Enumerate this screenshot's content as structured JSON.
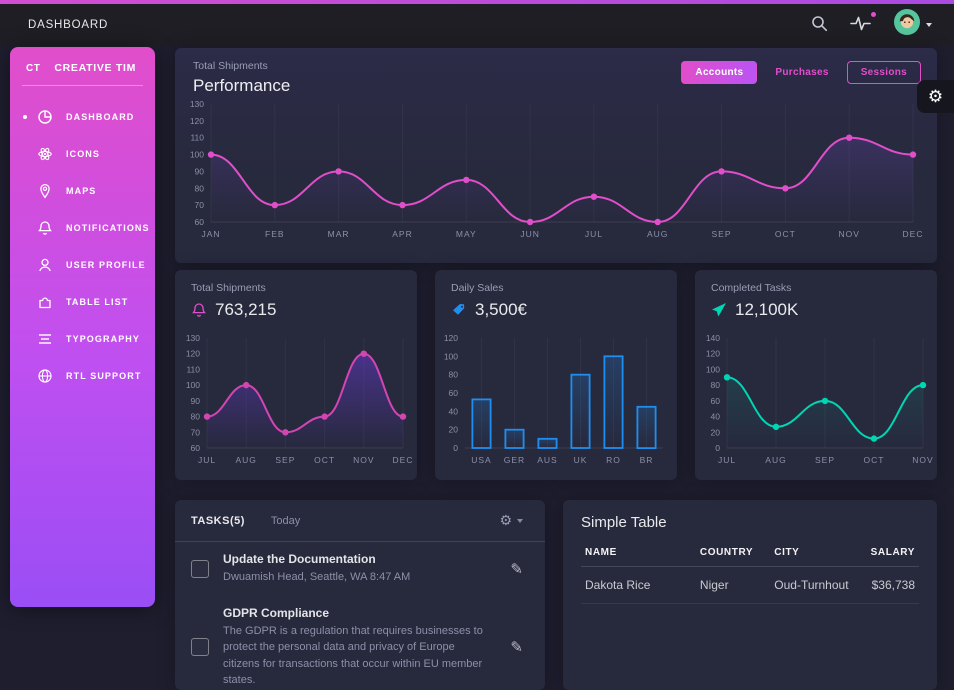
{
  "colors": {
    "primary": "#e14eca",
    "purple": "#ba54f5",
    "blue": "#1f8ef1",
    "teal": "#00d6b4",
    "card_bg": "#27293d",
    "body_bg": "#1e1e2f"
  },
  "topbar": {
    "title": "DASHBOARD",
    "icons": [
      "search-icon",
      "activity-icon",
      "avatar"
    ]
  },
  "sidebar": {
    "brand_short": "CT",
    "brand": "CREATIVE TIM",
    "items": [
      {
        "label": "DASHBOARD",
        "icon": "chart-pie-icon",
        "active": true
      },
      {
        "label": "ICONS",
        "icon": "atom-icon",
        "active": false
      },
      {
        "label": "MAPS",
        "icon": "pin-icon",
        "active": false
      },
      {
        "label": "NOTIFICATIONS",
        "icon": "bell-icon",
        "active": false
      },
      {
        "label": "USER PROFILE",
        "icon": "user-icon",
        "active": false
      },
      {
        "label": "TABLE LIST",
        "icon": "puzzle-icon",
        "active": false
      },
      {
        "label": "TYPOGRAPHY",
        "icon": "align-icon",
        "active": false
      },
      {
        "label": "RTL SUPPORT",
        "icon": "globe-icon",
        "active": false
      }
    ]
  },
  "performance": {
    "subtitle": "Total Shipments",
    "title": "Performance",
    "buttons": [
      {
        "label": "Accounts",
        "variant": "filled",
        "active": true
      },
      {
        "label": "Purchases",
        "variant": "text",
        "active": false
      },
      {
        "label": "Sessions",
        "variant": "outline",
        "active": false
      }
    ]
  },
  "stats": [
    {
      "label": "Total Shipments",
      "value": "763,215",
      "icon": "bell-icon",
      "color": "#e14eca"
    },
    {
      "label": "Daily Sales",
      "value": "3,500€",
      "icon": "tag-icon",
      "color": "#1f8ef1"
    },
    {
      "label": "Completed Tasks",
      "value": "12,100K",
      "icon": "send-icon",
      "color": "#00d6b4"
    }
  ],
  "chart_data": [
    {
      "name": "performance",
      "type": "line",
      "title": "Performance",
      "subtitle": "Total Shipments",
      "categories": [
        "JAN",
        "FEB",
        "MAR",
        "APR",
        "MAY",
        "JUN",
        "JUL",
        "AUG",
        "SEP",
        "OCT",
        "NOV",
        "DEC"
      ],
      "values": [
        100,
        70,
        90,
        70,
        85,
        60,
        75,
        60,
        90,
        80,
        110,
        100
      ],
      "ylim": [
        60,
        130
      ],
      "yticks": [
        130,
        120,
        110,
        100,
        90,
        80,
        70,
        60
      ],
      "line_color": "#e14eca",
      "fill_color": "#8250dd",
      "fill_opacity": 0.2,
      "grid": "faint-vertical",
      "legend": false
    },
    {
      "name": "total-shipments",
      "type": "line",
      "title": "Total Shipments",
      "categories": [
        "JUL",
        "AUG",
        "SEP",
        "OCT",
        "NOV",
        "DEC"
      ],
      "values": [
        80,
        100,
        70,
        80,
        120,
        80
      ],
      "ylim": [
        60,
        130
      ],
      "yticks": [
        130,
        120,
        110,
        100,
        90,
        80,
        70,
        60
      ],
      "line_color": "#d346b1",
      "fill_color": "#6a3bd8",
      "fill_opacity": 0.5,
      "grid": "faint-vertical",
      "legend": false
    },
    {
      "name": "daily-sales",
      "type": "bar",
      "title": "Daily Sales",
      "categories": [
        "USA",
        "GER",
        "AUS",
        "UK",
        "RO",
        "BR"
      ],
      "values": [
        53,
        20,
        10,
        80,
        100,
        45
      ],
      "ylim": [
        0,
        120
      ],
      "yticks": [
        120,
        100,
        80,
        60,
        40,
        20,
        0
      ],
      "line_color": "#1f8ef1",
      "fill_color": "#1f8ef1",
      "fill_opacity": 0.22,
      "grid": "faint-vertical",
      "legend": false
    },
    {
      "name": "completed-tasks",
      "type": "line",
      "title": "Completed Tasks",
      "categories": [
        "JUL",
        "AUG",
        "SEP",
        "OCT",
        "NOV"
      ],
      "values": [
        90,
        27,
        60,
        12,
        80
      ],
      "ylim": [
        0,
        140
      ],
      "yticks": [
        140,
        120,
        100,
        80,
        60,
        40,
        20,
        0
      ],
      "line_color": "#00d6b4",
      "fill_color": "#00d6b4",
      "fill_opacity": 0.12,
      "grid": "faint-vertical",
      "legend": false
    }
  ],
  "tasks": {
    "title": "TASKS(5)",
    "filter": "Today",
    "items": [
      {
        "title": "Update the Documentation",
        "meta": "Dwuamish Head, Seattle, WA 8:47 AM"
      },
      {
        "title": "GDPR Compliance",
        "meta": "The GDPR is a regulation that requires businesses to protect the personal data and privacy of Europe citizens for transactions that occur within EU member states."
      }
    ]
  },
  "table": {
    "title": "Simple Table",
    "columns": [
      "NAME",
      "COUNTRY",
      "CITY",
      "SALARY"
    ],
    "rows": [
      [
        "Dakota Rice",
        "Niger",
        "Oud-Turnhout",
        "$36,738"
      ]
    ]
  }
}
